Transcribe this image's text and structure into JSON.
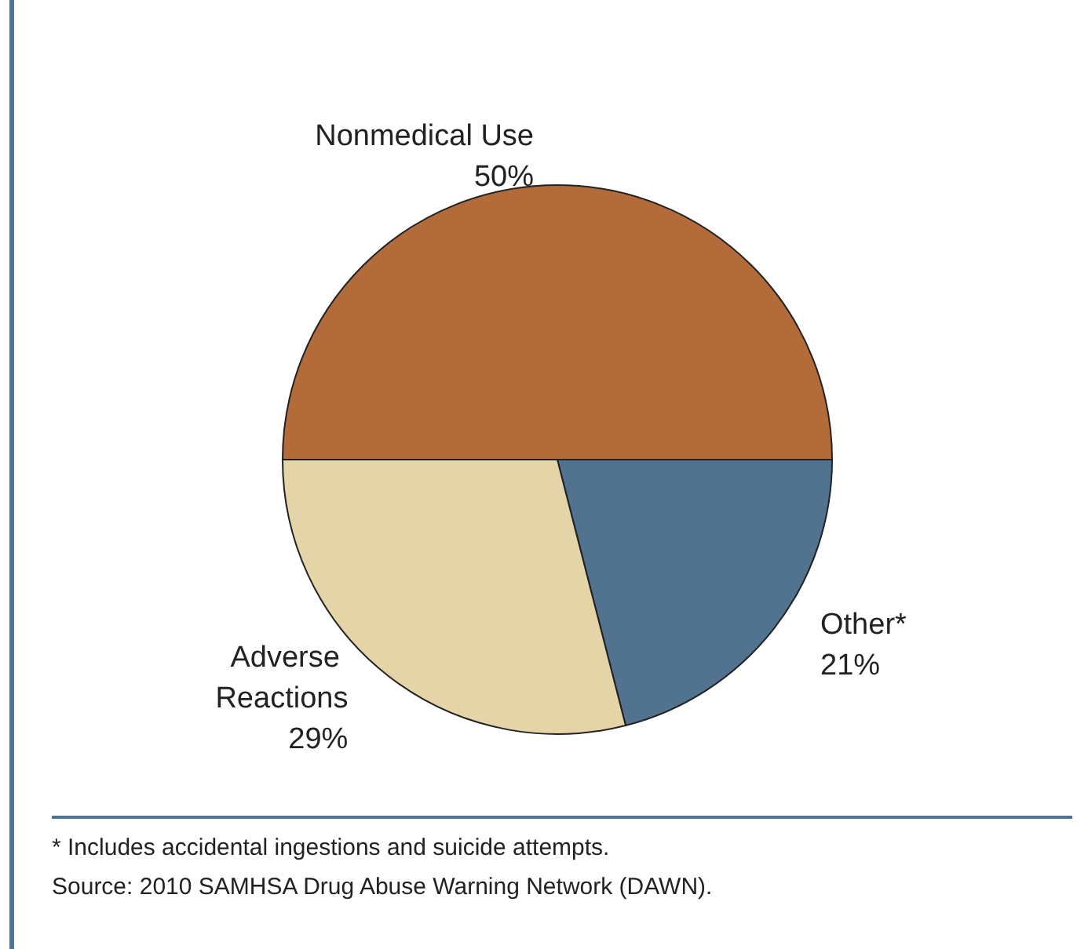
{
  "chart_data": {
    "type": "pie",
    "categories": [
      "Nonmedical Use",
      "Other*",
      "Adverse Reactions"
    ],
    "values": [
      50,
      21,
      29
    ],
    "value_labels": [
      "50%",
      "21%",
      "29%"
    ],
    "colors": [
      "#b36b3a",
      "#52738f",
      "#e5d4a7"
    ],
    "annotations": [
      "* Includes accidental ingestions and suicide attempts.",
      "Source: 2010 SAMHSA Drug Abuse Warning Network (DAWN)."
    ]
  }
}
